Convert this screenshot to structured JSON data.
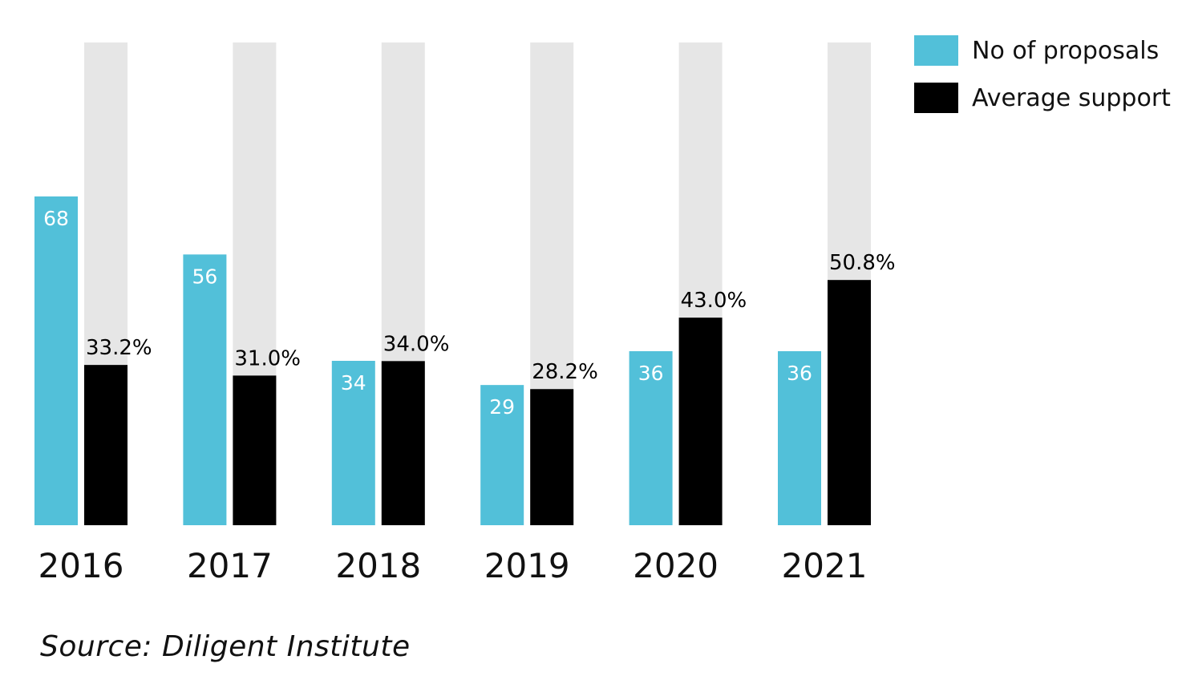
{
  "chart_data": {
    "type": "bar",
    "categories": [
      "2016",
      "2017",
      "2018",
      "2019",
      "2020",
      "2021"
    ],
    "series": [
      {
        "name": "No of proposals",
        "values": [
          68,
          56,
          34,
          29,
          36,
          36
        ],
        "labels": [
          "68",
          "56",
          "34",
          "29",
          "36",
          "36"
        ],
        "color": "#52c0d9",
        "label_color": "#ffffff"
      },
      {
        "name": "Average support",
        "values": [
          33.2,
          31.0,
          34.0,
          28.2,
          43.0,
          50.8
        ],
        "labels": [
          "33.2%",
          "31.0%",
          "34.0%",
          "28.2%",
          "43.0%",
          "50.8%"
        ],
        "color": "#000000",
        "label_color": "#000000",
        "max": 100,
        "background_color": "#e6e6e6"
      }
    ],
    "legend_position": "top-right",
    "grid": false
  },
  "source": "Source: Diligent Institute"
}
